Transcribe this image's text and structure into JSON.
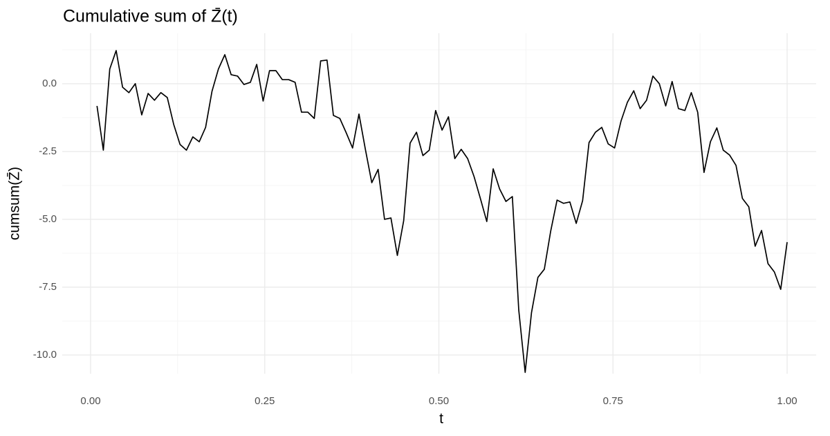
{
  "chart_data": {
    "type": "line",
    "title": "Cumulative sum of Z̄(t)",
    "x_label": "t",
    "y_label": "cumsum(Z̄)",
    "color": "#000000",
    "grid": true,
    "xlim": [
      -0.0407,
      1.0417
    ],
    "ylim": [
      -10.69,
      1.86
    ],
    "xticks": [
      {
        "value": 0,
        "label": "0.00"
      },
      0.25,
      {
        "value": 0.5,
        "label": "0.50"
      },
      0.75,
      {
        "value": 1,
        "label": "1.00"
      }
    ],
    "yticks": [
      {
        "value": 0,
        "label": "0.0"
      },
      -2.5,
      {
        "value": -5,
        "label": "-5.0"
      },
      -7.5,
      {
        "value": -10,
        "label": "-10.0"
      }
    ],
    "x": [
      0.0092,
      0.0183,
      0.0275,
      0.0367,
      0.0459,
      0.055,
      0.0642,
      0.0734,
      0.0826,
      0.0917,
      0.1009,
      0.1101,
      0.1193,
      0.1284,
      0.1376,
      0.1468,
      0.156,
      0.1651,
      0.1743,
      0.1835,
      0.1927,
      0.2018,
      0.211,
      0.2202,
      0.2294,
      0.2385,
      0.2477,
      0.2569,
      0.2661,
      0.2752,
      0.2844,
      0.2936,
      0.3028,
      0.3119,
      0.3211,
      0.3303,
      0.3394,
      0.3486,
      0.3578,
      0.367,
      0.3761,
      0.3853,
      0.3945,
      0.4037,
      0.4128,
      0.422,
      0.4312,
      0.4404,
      0.4495,
      0.4587,
      0.4679,
      0.4771,
      0.4862,
      0.4954,
      0.5046,
      0.5138,
      0.5229,
      0.5321,
      0.5413,
      0.5505,
      0.5596,
      0.5688,
      0.578,
      0.5872,
      0.5963,
      0.6055,
      0.6147,
      0.6239,
      0.633,
      0.6422,
      0.6514,
      0.6606,
      0.6697,
      0.6789,
      0.6881,
      0.6972,
      0.7064,
      0.7156,
      0.7248,
      0.7339,
      0.7431,
      0.7523,
      0.7615,
      0.7706,
      0.7798,
      0.789,
      0.7982,
      0.8073,
      0.8165,
      0.8257,
      0.8349,
      0.844,
      0.8532,
      0.8624,
      0.8716,
      0.8807,
      0.8899,
      0.8991,
      0.9083,
      0.9174,
      0.9266,
      0.9358,
      0.945,
      0.9541,
      0.9633,
      0.9725,
      0.9817,
      0.9908,
      1
    ],
    "values": [
      -0.82,
      -2.45,
      0.54,
      1.22,
      -0.13,
      -0.33,
      0.0,
      -1.15,
      -0.36,
      -0.61,
      -0.33,
      -0.51,
      -1.5,
      -2.24,
      -2.45,
      -1.96,
      -2.14,
      -1.61,
      -0.28,
      0.54,
      1.07,
      0.33,
      0.28,
      -0.03,
      0.05,
      0.71,
      -0.64,
      0.48,
      0.48,
      0.15,
      0.15,
      0.05,
      -1.05,
      -1.05,
      -1.28,
      0.84,
      0.87,
      -1.17,
      -1.28,
      -1.81,
      -2.37,
      -1.12,
      -2.42,
      -3.65,
      -3.16,
      -5.0,
      -4.95,
      -6.33,
      -5.05,
      -2.19,
      -1.79,
      -2.65,
      -2.45,
      -0.99,
      -1.71,
      -1.22,
      -2.76,
      -2.42,
      -2.76,
      -3.42,
      -4.23,
      -5.08,
      -3.14,
      -3.88,
      -4.34,
      -4.16,
      -8.34,
      -10.64,
      -8.44,
      -7.14,
      -6.84,
      -5.43,
      -4.29,
      -4.41,
      -4.36,
      -5.15,
      -4.31,
      -2.17,
      -1.79,
      -1.61,
      -2.22,
      -2.37,
      -1.38,
      -0.69,
      -0.26,
      -0.92,
      -0.61,
      0.28,
      0.0,
      -0.82,
      0.08,
      -0.92,
      -0.99,
      -0.33,
      -1.05,
      -3.27,
      -2.14,
      -1.63,
      -2.45,
      -2.63,
      -3.01,
      -4.23,
      -4.54,
      -5.99,
      -5.41,
      -6.63,
      -6.94,
      -7.58,
      -5.84
    ]
  }
}
